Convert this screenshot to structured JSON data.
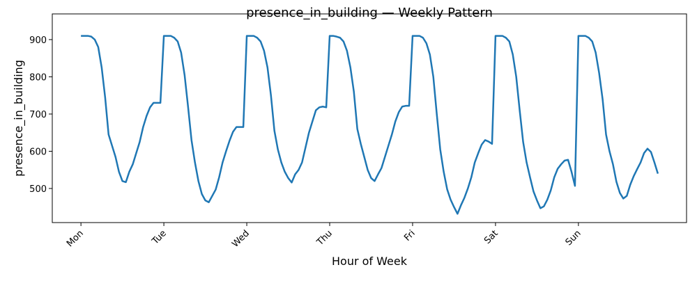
{
  "chart_data": {
    "type": "line",
    "title": "presence_in_building — Weekly Pattern",
    "xlabel": "Hour of Week",
    "ylabel": "presence_in_building",
    "x": [
      0,
      1,
      2,
      3,
      4,
      5,
      6,
      7,
      8,
      9,
      10,
      11,
      12,
      13,
      14,
      15,
      16,
      17,
      18,
      19,
      20,
      21,
      22,
      23,
      24,
      25,
      26,
      27,
      28,
      29,
      30,
      31,
      32,
      33,
      34,
      35,
      36,
      37,
      38,
      39,
      40,
      41,
      42,
      43,
      44,
      45,
      46,
      47,
      48,
      49,
      50,
      51,
      52,
      53,
      54,
      55,
      56,
      57,
      58,
      59,
      60,
      61,
      62,
      63,
      64,
      65,
      66,
      67,
      68,
      69,
      70,
      71,
      72,
      73,
      74,
      75,
      76,
      77,
      78,
      79,
      80,
      81,
      82,
      83,
      84,
      85,
      86,
      87,
      88,
      89,
      90,
      91,
      92,
      93,
      94,
      95,
      96,
      97,
      98,
      99,
      100,
      101,
      102,
      103,
      104,
      105,
      106,
      107,
      108,
      109,
      110,
      111,
      112,
      113,
      114,
      115,
      116,
      117,
      118,
      119,
      120,
      121,
      122,
      123,
      124,
      125,
      126,
      127,
      128,
      129,
      130,
      131,
      132,
      133,
      134,
      135,
      136,
      137,
      138,
      139,
      140,
      141,
      142,
      143,
      144,
      145,
      146,
      147,
      148,
      149,
      150,
      151,
      152,
      153,
      154,
      155,
      156,
      157,
      158,
      159,
      160,
      161,
      162,
      163,
      164,
      165,
      166,
      167
    ],
    "series": [
      {
        "name": "presence_in_building",
        "color": "#1f77b4",
        "values": [
          910,
          910,
          910,
          908,
          900,
          880,
          825,
          745,
          645,
          615,
          585,
          545,
          520,
          517,
          545,
          565,
          595,
          625,
          665,
          695,
          718,
          730,
          730,
          730,
          910,
          910,
          910,
          905,
          895,
          865,
          805,
          720,
          630,
          570,
          520,
          485,
          468,
          463,
          480,
          497,
          530,
          570,
          600,
          628,
          652,
          665,
          665,
          665,
          910,
          910,
          910,
          905,
          895,
          870,
          825,
          750,
          655,
          605,
          570,
          545,
          528,
          516,
          538,
          550,
          570,
          610,
          650,
          680,
          710,
          718,
          720,
          718,
          910,
          910,
          908,
          905,
          895,
          870,
          825,
          760,
          660,
          620,
          585,
          550,
          528,
          520,
          538,
          555,
          585,
          615,
          645,
          680,
          705,
          720,
          722,
          722,
          910,
          910,
          910,
          905,
          890,
          860,
          800,
          700,
          605,
          545,
          498,
          470,
          450,
          432,
          455,
          475,
          500,
          530,
          570,
          595,
          618,
          630,
          626,
          620,
          910,
          910,
          910,
          905,
          895,
          860,
          800,
          710,
          625,
          570,
          530,
          492,
          468,
          447,
          452,
          470,
          495,
          530,
          553,
          565,
          575,
          577,
          545,
          507,
          910,
          910,
          910,
          905,
          895,
          865,
          810,
          740,
          645,
          600,
          565,
          518,
          488,
          473,
          480,
          510,
          533,
          552,
          570,
          595,
          607,
          598,
          570,
          540
        ]
      }
    ],
    "xlim": [
      -8.3,
      175.3
    ],
    "ylim": [
      408.4,
      969
    ],
    "xticks": [
      {
        "value": 0,
        "label": "Mon"
      },
      {
        "value": 24,
        "label": "Tue"
      },
      {
        "value": 48,
        "label": "Wed"
      },
      {
        "value": 72,
        "label": "Thu"
      },
      {
        "value": 96,
        "label": "Fri"
      },
      {
        "value": 120,
        "label": "Sat"
      },
      {
        "value": 144,
        "label": "Sun"
      }
    ],
    "yticks": [
      500,
      600,
      700,
      800,
      900
    ]
  }
}
